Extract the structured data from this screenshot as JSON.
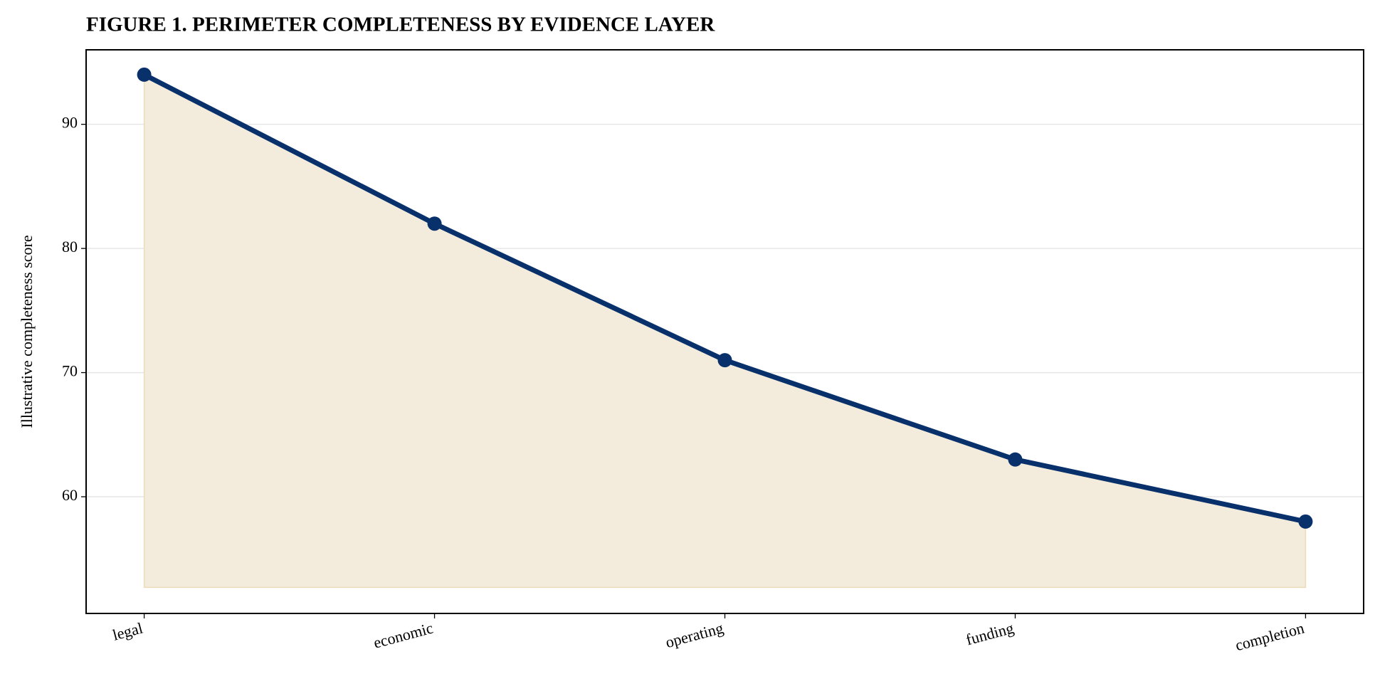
{
  "chart_data": {
    "type": "line",
    "title": "FIGURE 1. PERIMETER COMPLETENESS BY EVIDENCE LAYER",
    "y_label": "Illustrative completeness score",
    "categories": [
      "legal",
      "economic",
      "operating",
      "funding",
      "completion"
    ],
    "series": [
      {
        "name": "completeness",
        "color": "#08306b",
        "values": [
          94,
          82,
          71,
          63,
          58
        ]
      }
    ],
    "area_fill": "#f3ebdc",
    "area_baseline": 52.7,
    "ylim": [
      50.6,
      96.0
    ],
    "yticks": [
      60,
      70,
      80,
      90
    ],
    "grid": true
  }
}
